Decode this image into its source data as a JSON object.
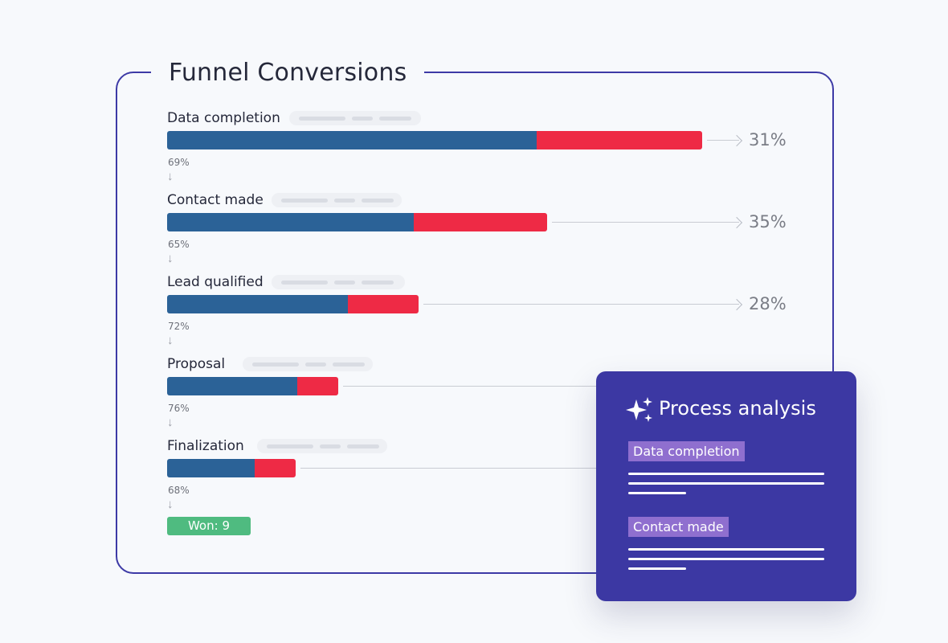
{
  "panel": {
    "title": "Funnel Conversions"
  },
  "stages": [
    {
      "label": "Data completion",
      "conversion_pct": "69%",
      "dropoff_pct": "31%",
      "bar_fraction": 1.0,
      "conversion_fraction": 0.69
    },
    {
      "label": "Contact made",
      "conversion_pct": "65%",
      "dropoff_pct": "35%",
      "bar_fraction": 0.71,
      "conversion_fraction": 0.65
    },
    {
      "label": "Lead qualified",
      "conversion_pct": "72%",
      "dropoff_pct": "28%",
      "bar_fraction": 0.47,
      "conversion_fraction": 0.72
    },
    {
      "label": "Proposal",
      "conversion_pct": "76%",
      "dropoff_pct": "",
      "bar_fraction": 0.32,
      "conversion_fraction": 0.76
    },
    {
      "label": "Finalization",
      "conversion_pct": "68%",
      "dropoff_pct": "",
      "bar_fraction": 0.24,
      "conversion_fraction": 0.68
    }
  ],
  "won": {
    "label": "Won: 9"
  },
  "analysis_card": {
    "title": "Process analysis",
    "icon": "sparkle-icon",
    "sections": [
      {
        "tag": "Data completion"
      },
      {
        "tag": "Contact made"
      }
    ]
  },
  "colors": {
    "converted": "#2b6297",
    "dropped": "#ee2a45",
    "won": "#4fbb80",
    "accent": "#3c38a3",
    "tag": "#8f6fcf"
  }
}
